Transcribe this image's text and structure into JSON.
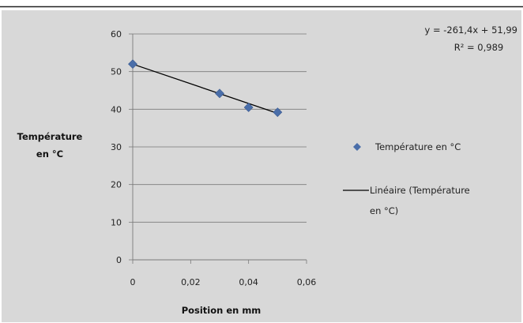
{
  "chart_data": {
    "type": "scatter",
    "xlabel": "Position en mm",
    "ylabel_line1": "Température",
    "ylabel_line2": "en °C",
    "xlim": [
      0,
      0.06
    ],
    "ylim": [
      0,
      60
    ],
    "x_ticks": [
      "0",
      "0,02",
      "0,04",
      "0,06"
    ],
    "x_tick_values": [
      0,
      0.02,
      0.04,
      0.06
    ],
    "y_ticks": [
      "0",
      "10",
      "20",
      "30",
      "40",
      "50",
      "60"
    ],
    "y_tick_values": [
      0,
      10,
      20,
      30,
      40,
      50,
      60
    ],
    "grid": true,
    "legend_position": "right",
    "series": [
      {
        "name": "Température en °C",
        "marker": "diamond",
        "color": "#4a6ea9",
        "x": [
          0,
          0.03,
          0.04,
          0.05
        ],
        "y": [
          52,
          44.2,
          40.5,
          39.2
        ]
      }
    ],
    "trendline": {
      "name_line1": "Linéaire (Température",
      "name_line2": "en °C)",
      "slope": -261.4,
      "intercept": 51.99,
      "x_range": [
        0,
        0.05
      ],
      "color": "#000000"
    },
    "annotations": {
      "equation": "y = -261,4x + 51,99",
      "r_squared": "R² = 0,989"
    }
  },
  "colors": {
    "background": "#d8d8d8",
    "gridline": "#7a7a7a",
    "axis": "#7a7a7a"
  }
}
